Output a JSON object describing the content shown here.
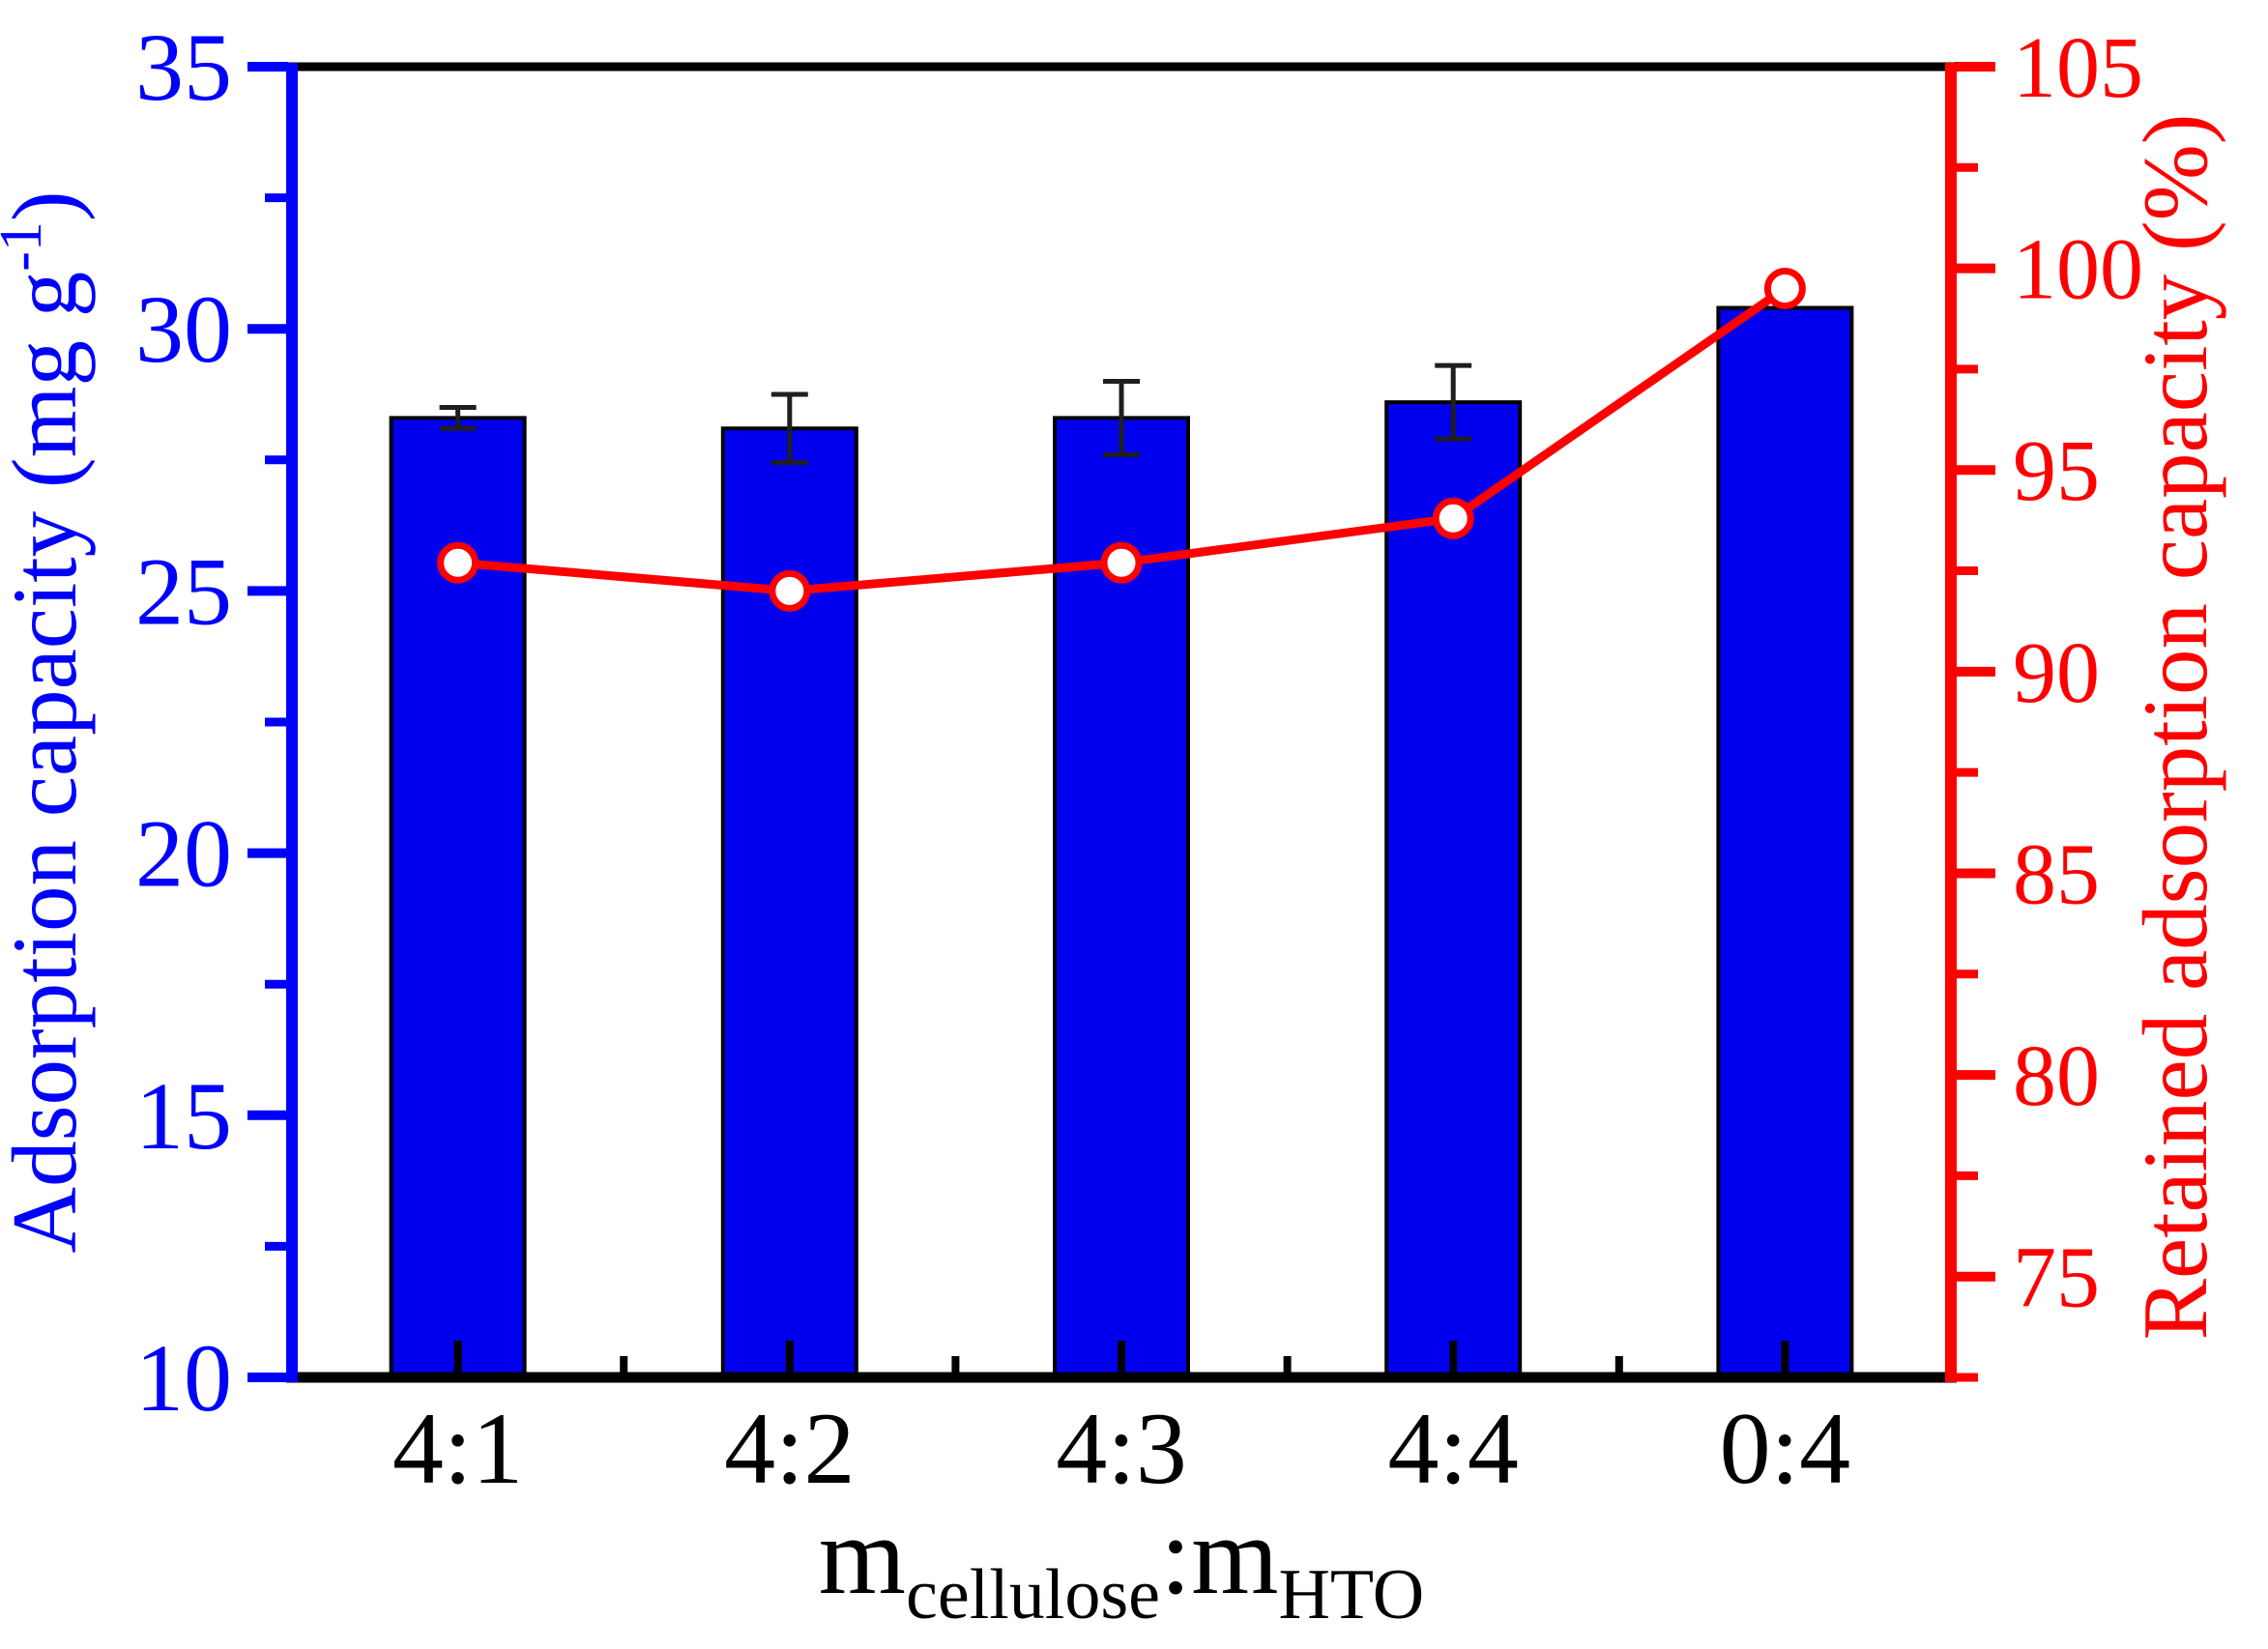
{
  "figure": {
    "kind": "dual-axis bar and line scientific plot",
    "background": "#ffffff"
  },
  "chart_data": {
    "type": "bar",
    "categories": [
      "4:1",
      "4:2",
      "4:3",
      "4:4",
      "0:4"
    ],
    "series": [
      {
        "name": "Adsorption capacity",
        "plot": "bar",
        "axis": "left",
        "values": [
          28.3,
          28.1,
          28.3,
          28.6,
          30.4
        ],
        "errors": [
          0.2,
          0.65,
          0.7,
          0.7,
          0
        ],
        "bar_fill": "#0000ee",
        "bar_edge": "#000000",
        "error_color": "#1f1f1f"
      },
      {
        "name": "Retained adsorption capacity",
        "plot": "line",
        "axis": "right",
        "values": [
          92.7,
          92.0,
          92.7,
          93.8,
          99.5
        ],
        "line_color": "#ff0000",
        "marker": "open-circle",
        "marker_fill": "#ffffff",
        "marker_edge": "#ff0000"
      }
    ],
    "left_axis": {
      "label": "Adsorption capacity (mg g⁻¹)",
      "label_parts": [
        {
          "t": "Adsorption capacity (mg g"
        },
        {
          "t": "-1",
          "sup": true
        },
        {
          "t": ")"
        }
      ],
      "min": 10,
      "max": 35,
      "major_ticks": [
        10,
        15,
        20,
        25,
        30,
        35
      ],
      "minor_ticks": [
        12.5,
        17.5,
        22.5,
        27.5,
        32.5
      ],
      "color": "#0000ff"
    },
    "right_axis": {
      "label": "Retained adsorption capacity (%)",
      "min": 72.5,
      "max": 105,
      "major_ticks": [
        75,
        80,
        85,
        90,
        95,
        100,
        105
      ],
      "minor_ticks": [
        72.5,
        77.5,
        82.5,
        87.5,
        92.5,
        97.5,
        102.5
      ],
      "color": "#ff0000"
    },
    "x_axis": {
      "label": "mcellulose:mHTO",
      "label_parts": [
        {
          "t": "m"
        },
        {
          "t": "cellulose",
          "sub": true
        },
        {
          "t": ":"
        },
        {
          "t": "m"
        },
        {
          "t": "HTO",
          "sub": true
        }
      ],
      "color": "#000000"
    },
    "grid": false,
    "legend": null
  }
}
